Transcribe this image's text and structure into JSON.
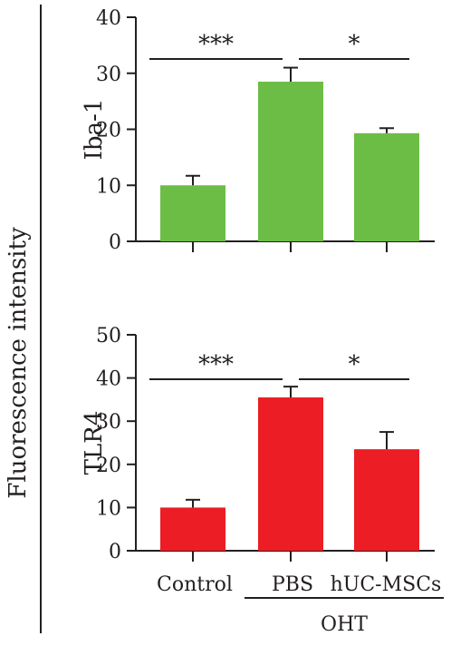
{
  "y_axis_title": "Fluorescence intensity",
  "group_label": "OHT",
  "colors": {
    "iba1": "#6cbd45",
    "tlr4": "#ec1d25",
    "ink": "#231f20"
  },
  "chart_data": [
    {
      "type": "bar",
      "categories": [
        "Control",
        "PBS",
        "hUC-MSCs"
      ],
      "values": [
        10.0,
        28.5,
        19.3
      ],
      "error_bars": [
        1.7,
        2.5,
        0.9
      ],
      "ylabel": "Iba-1",
      "ylim": [
        0,
        40
      ],
      "yticks": [
        0,
        10,
        20,
        30,
        40
      ],
      "significance": [
        {
          "from": "Control",
          "to": "PBS",
          "label": "***"
        },
        {
          "from": "PBS",
          "to": "hUC-MSCs",
          "label": "*"
        }
      ]
    },
    {
      "type": "bar",
      "categories": [
        "Control",
        "PBS",
        "hUC-MSCs"
      ],
      "values": [
        10.0,
        35.5,
        23.5
      ],
      "error_bars": [
        1.8,
        2.5,
        4.0
      ],
      "ylabel": "TLR4",
      "ylim": [
        0,
        50
      ],
      "yticks": [
        0,
        10,
        20,
        30,
        40,
        50
      ],
      "significance": [
        {
          "from": "Control",
          "to": "PBS",
          "label": "***"
        },
        {
          "from": "PBS",
          "to": "hUC-MSCs",
          "label": "*"
        }
      ]
    }
  ]
}
